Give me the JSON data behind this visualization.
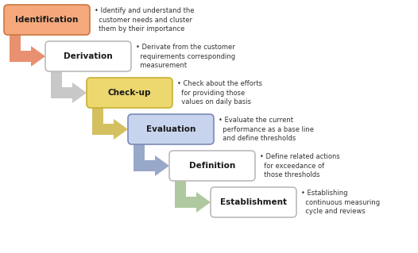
{
  "background_color": "#FFFFFF",
  "fig_width": 5.26,
  "fig_height": 3.19,
  "steps": [
    {
      "label": "Identification",
      "box_fill": "#F5A87C",
      "box_edge": "#C97840",
      "text_color": "#1A1A1A",
      "desc": "• Identify and understand the\n  customer needs and cluster\n  them by their importance",
      "arrow_color": "#E89070"
    },
    {
      "label": "Derivation",
      "box_fill": "#FFFFFF",
      "box_edge": "#BBBBBB",
      "text_color": "#1A1A1A",
      "desc": "• Derivate from the customer\n  requirements corresponding\n  measurement",
      "arrow_color": "#C8C8C8"
    },
    {
      "label": "Check-up",
      "box_fill": "#EDD870",
      "box_edge": "#C8B030",
      "text_color": "#1A1A1A",
      "desc": "• Check about the efforts\n  for providing those\n  values on daily basis",
      "arrow_color": "#D4C060"
    },
    {
      "label": "Evaluation",
      "box_fill": "#C8D4EE",
      "box_edge": "#7A8AB8",
      "text_color": "#1A1A1A",
      "desc": "• Evaluate the current\n  performance as a base line\n  and define thresholds",
      "arrow_color": "#98A8C8"
    },
    {
      "label": "Definition",
      "box_fill": "#FFFFFF",
      "box_edge": "#BBBBBB",
      "text_color": "#1A1A1A",
      "desc": "• Define related actions\n  for exceedance of\n  those thresholds",
      "arrow_color": "#B0C8A0"
    },
    {
      "label": "Establishment",
      "box_fill": "#FFFFFF",
      "box_edge": "#BBBBBB",
      "text_color": "#1A1A1A",
      "desc": "• Establishing\n  continuous measuring\n  cycle and reviews",
      "arrow_color": "#AAAAAA"
    }
  ]
}
